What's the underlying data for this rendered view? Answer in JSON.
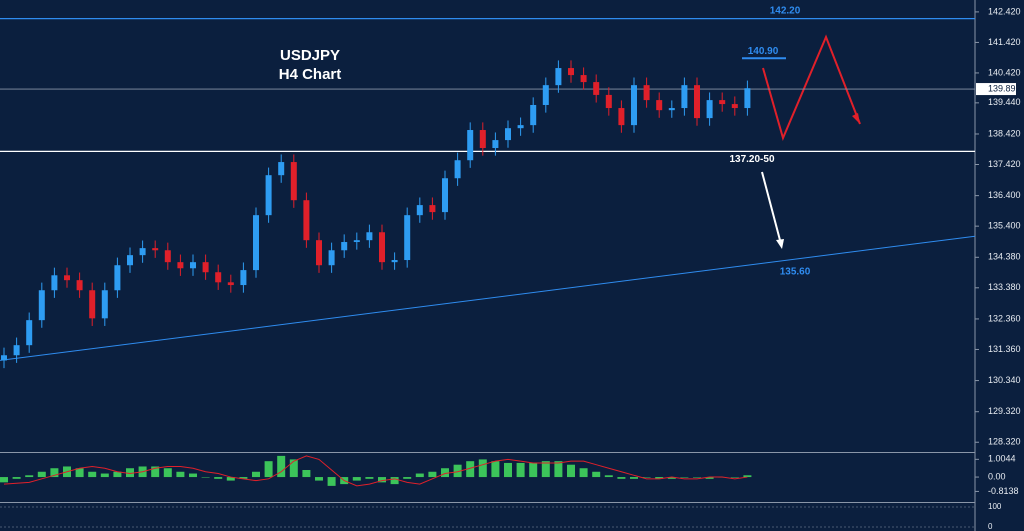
{
  "chart_data": {
    "type": "candlestick",
    "title": "USDJPY",
    "subtitle": "H4 Chart",
    "ylim": [
      128.0,
      142.81
    ],
    "yticks": [
      {
        "value": 142.42,
        "label": "142.420"
      },
      {
        "value": 141.42,
        "label": "141.420"
      },
      {
        "value": 140.42,
        "label": "140.420"
      },
      {
        "value": 139.44,
        "label": "139.440"
      },
      {
        "value": 138.42,
        "label": "138.420"
      },
      {
        "value": 137.42,
        "label": "137.420"
      },
      {
        "value": 136.4,
        "label": "136.400"
      },
      {
        "value": 135.4,
        "label": "135.400"
      },
      {
        "value": 134.38,
        "label": "134.380"
      },
      {
        "value": 133.38,
        "label": "133.380"
      },
      {
        "value": 132.36,
        "label": "132.360"
      },
      {
        "value": 131.36,
        "label": "131.360"
      },
      {
        "value": 130.34,
        "label": "130.340"
      },
      {
        "value": 129.32,
        "label": "129.320"
      },
      {
        "value": 128.32,
        "label": "128.320"
      }
    ],
    "up_color": "#2e9cf2",
    "down_color": "#e0202a",
    "open": [
      131.0,
      131.17,
      131.5,
      132.32,
      133.3,
      133.79,
      133.63,
      133.3,
      132.38,
      133.3,
      134.12,
      134.45,
      134.68,
      134.61,
      134.22,
      134.02,
      134.22,
      133.89,
      133.56,
      133.47,
      133.96,
      135.76,
      137.07,
      137.5,
      136.25,
      134.94,
      134.12,
      134.61,
      134.88,
      134.94,
      135.2,
      134.22,
      134.29,
      135.76,
      136.09,
      135.86,
      136.97,
      137.56,
      138.55,
      137.96,
      138.22,
      138.61,
      138.71,
      139.37,
      140.02,
      140.58,
      140.35,
      140.12,
      139.7,
      139.27,
      138.71,
      140.02,
      139.53,
      139.2,
      139.27,
      140.02,
      138.94,
      139.53,
      139.4,
      139.27
    ],
    "high": [
      131.42,
      131.75,
      132.57,
      133.55,
      134.04,
      134.04,
      133.88,
      133.55,
      133.55,
      134.37,
      134.7,
      134.93,
      134.93,
      134.86,
      134.47,
      134.47,
      134.47,
      134.14,
      133.81,
      134.21,
      136.01,
      137.32,
      137.75,
      137.75,
      136.5,
      135.19,
      134.86,
      135.13,
      135.19,
      135.45,
      135.45,
      134.54,
      136.01,
      136.34,
      136.34,
      137.22,
      137.81,
      138.8,
      138.8,
      138.47,
      138.86,
      138.96,
      139.62,
      140.27,
      140.83,
      140.83,
      140.6,
      140.37,
      139.95,
      139.52,
      140.27,
      140.27,
      139.78,
      139.52,
      140.27,
      140.27,
      139.78,
      139.78,
      139.65,
      140.17
    ],
    "low": [
      130.75,
      130.92,
      131.25,
      132.07,
      133.05,
      133.38,
      133.05,
      132.13,
      132.13,
      133.05,
      133.87,
      134.2,
      134.36,
      133.97,
      133.77,
      133.77,
      133.64,
      133.31,
      133.22,
      133.22,
      133.71,
      135.51,
      136.82,
      136.0,
      134.69,
      133.87,
      133.87,
      134.36,
      134.63,
      134.69,
      133.97,
      133.97,
      134.04,
      135.51,
      135.61,
      135.61,
      136.72,
      137.31,
      137.71,
      137.71,
      137.97,
      138.36,
      138.46,
      139.12,
      139.77,
      140.1,
      139.87,
      139.45,
      139.02,
      138.46,
      138.46,
      139.28,
      138.95,
      138.95,
      139.02,
      138.69,
      138.69,
      139.15,
      139.02,
      139.02
    ],
    "close": [
      131.17,
      131.5,
      132.32,
      133.3,
      133.79,
      133.63,
      133.3,
      132.38,
      133.3,
      134.12,
      134.45,
      134.68,
      134.61,
      134.22,
      134.02,
      134.22,
      133.89,
      133.56,
      133.47,
      133.96,
      135.76,
      137.07,
      137.5,
      136.25,
      134.94,
      134.12,
      134.61,
      134.88,
      134.94,
      135.2,
      134.22,
      134.29,
      135.76,
      136.09,
      135.86,
      136.97,
      137.56,
      138.55,
      137.96,
      138.22,
      138.61,
      138.71,
      139.37,
      140.02,
      140.58,
      140.35,
      140.12,
      139.7,
      139.27,
      138.71,
      140.02,
      139.53,
      139.2,
      139.27,
      140.02,
      138.94,
      139.53,
      139.4,
      139.27,
      139.92
    ],
    "last_price": {
      "value": 139.892,
      "label": "139.892"
    },
    "levels": [
      {
        "value": 142.2,
        "label": "142.20",
        "color": "#2f8cf0"
      },
      {
        "value": 140.9,
        "label": "140.90",
        "color": "#2f8cf0"
      },
      {
        "value": 137.85,
        "color": "#ffffff"
      }
    ],
    "annotations": [
      "137.20-50"
    ],
    "trendline": {
      "label": "135.60",
      "values": [
        131.0,
        135.07
      ],
      "color": "#2f8cf0"
    },
    "macd": {
      "ylim": [
        -1.3,
        1.25
      ],
      "yticks": [
        {
          "value": 1.0044,
          "label": "1.0044"
        },
        {
          "value": 0,
          "label": "0.00"
        },
        {
          "value": -0.8138,
          "label": "-0.8138"
        }
      ],
      "histogram": [
        -0.3,
        -0.1,
        0.1,
        0.3,
        0.5,
        0.6,
        0.5,
        0.3,
        0.2,
        0.3,
        0.5,
        0.6,
        0.6,
        0.5,
        0.3,
        0.2,
        0.0,
        -0.1,
        -0.2,
        -0.1,
        0.3,
        0.9,
        1.2,
        1.0,
        0.4,
        -0.2,
        -0.5,
        -0.4,
        -0.2,
        -0.1,
        -0.3,
        -0.4,
        -0.1,
        0.2,
        0.3,
        0.5,
        0.7,
        0.9,
        1.0,
        0.9,
        0.8,
        0.8,
        0.8,
        0.9,
        0.9,
        0.7,
        0.5,
        0.3,
        0.1,
        -0.1,
        -0.1,
        0.0,
        -0.1,
        -0.1,
        0.0,
        0.0,
        -0.1,
        0.0,
        0.0,
        0.1
      ],
      "signal": [
        -0.4,
        -0.35,
        -0.3,
        -0.1,
        0.1,
        0.3,
        0.5,
        0.6,
        0.5,
        0.3,
        0.2,
        0.3,
        0.5,
        0.6,
        0.6,
        0.5,
        0.3,
        0.2,
        0.0,
        -0.1,
        -0.2,
        -0.1,
        0.3,
        0.9,
        1.2,
        1.0,
        0.4,
        -0.2,
        -0.5,
        -0.4,
        -0.2,
        -0.1,
        -0.3,
        -0.4,
        -0.1,
        0.2,
        0.3,
        0.5,
        0.7,
        0.9,
        1.0,
        0.9,
        0.8,
        0.8,
        0.8,
        0.9,
        0.9,
        0.7,
        0.5,
        0.3,
        0.1,
        -0.1,
        -0.1,
        0.0,
        -0.1,
        -0.1,
        0.0,
        0.0,
        -0.1,
        0.0
      ],
      "histogram_color": "#3cc45a",
      "signal_color": "#e0202a"
    },
    "oscillator": {
      "ylim": [
        -10,
        110
      ],
      "yticks": [
        100,
        0
      ]
    }
  }
}
